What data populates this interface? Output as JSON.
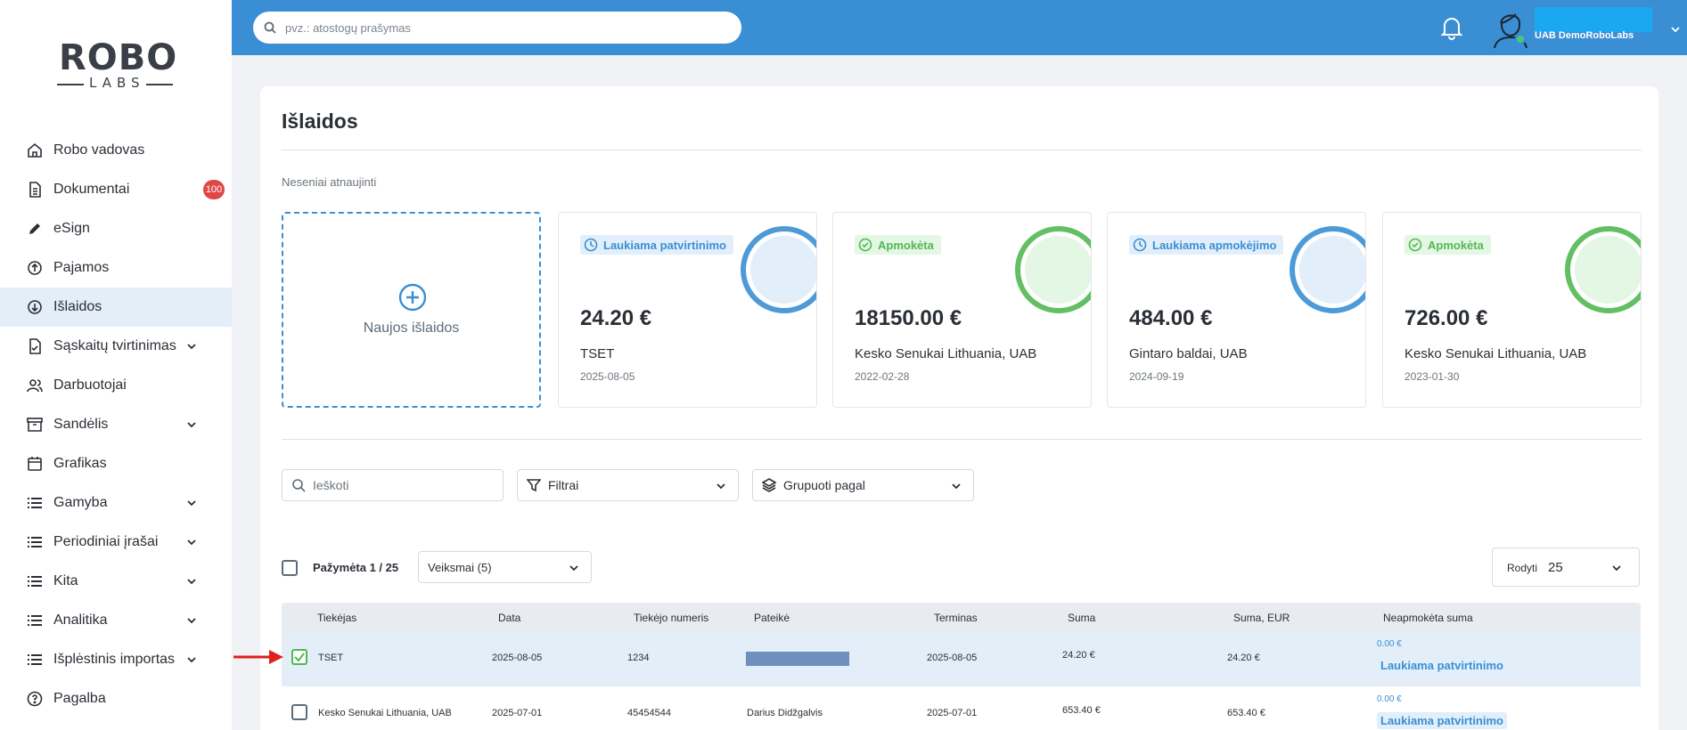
{
  "brand": {
    "logo_top": "ROBO",
    "logo_bottom": "LABS"
  },
  "sidebar": {
    "items": [
      {
        "label": "Robo vadovas",
        "icon": "home-icon"
      },
      {
        "label": "Dokumentai",
        "icon": "document-icon",
        "badge": "100"
      },
      {
        "label": "eSign",
        "icon": "pen-icon"
      },
      {
        "label": "Pajamos",
        "icon": "income-icon"
      },
      {
        "label": "Išlaidos",
        "icon": "expense-icon",
        "active": true
      },
      {
        "label": "Sąskaitų tvirtinimas",
        "icon": "invoice-check-icon",
        "expandable": true
      },
      {
        "label": "Darbuotojai",
        "icon": "users-icon"
      },
      {
        "label": "Sandėlis",
        "icon": "archive-icon",
        "expandable": true
      },
      {
        "label": "Grafikas",
        "icon": "calendar-icon"
      },
      {
        "label": "Gamyba",
        "icon": "list-icon",
        "expandable": true
      },
      {
        "label": "Periodiniai įrašai",
        "icon": "list-icon",
        "expandable": true
      },
      {
        "label": "Kita",
        "icon": "list-icon",
        "expandable": true
      },
      {
        "label": "Analitika",
        "icon": "list-icon",
        "expandable": true
      },
      {
        "label": "Išplėstinis importas",
        "icon": "list-icon",
        "expandable": true
      },
      {
        "label": "Pagalba",
        "icon": "help-icon"
      }
    ]
  },
  "topbar": {
    "search_placeholder": "pvz.: atostogų prašymas",
    "company": "UAB DemoRoboLabs"
  },
  "main": {
    "title": "Išlaidos",
    "recent_label": "Neseniai atnaujinti",
    "new_expense_label": "Naujos išlaidos",
    "recent_cards": [
      {
        "status": "Laukiama patvirtinimo",
        "status_kind": "pending",
        "amount": "24.20 €",
        "vendor": "TSET",
        "date": "2025-08-05"
      },
      {
        "status": "Apmokėta",
        "status_kind": "paid",
        "amount": "18150.00 €",
        "vendor": "Kesko Senukai Lithuania, UAB",
        "date": "2022-02-28"
      },
      {
        "status": "Laukiama apmokėjimo",
        "status_kind": "pending",
        "amount": "484.00 €",
        "vendor": "Gintaro baldai, UAB",
        "date": "2024-09-19"
      },
      {
        "status": "Apmokėta",
        "status_kind": "paid",
        "amount": "726.00 €",
        "vendor": "Kesko Senukai Lithuania, UAB",
        "date": "2023-01-30"
      }
    ],
    "search_placeholder": "Ieškoti",
    "filters_label": "Filtrai",
    "group_by_label": "Grupuoti pagal",
    "selected_text": "Pažymėta 1 / 25",
    "actions_label": "Veiksmai (5)",
    "rows_label": "Rodyti",
    "rows_value": "25",
    "colors": {
      "accent": "#3a8fd4",
      "paid": "#52b852",
      "danger": "#e04848"
    }
  },
  "table": {
    "headers": [
      "Tiekėjas",
      "Data",
      "Tiekėjo numeris",
      "Pateikė",
      "Terminas",
      "Suma",
      "Suma, EUR",
      "Neapmokėta suma"
    ],
    "rows": [
      {
        "selected": true,
        "vendor": "TSET",
        "date": "2025-08-05",
        "number": "1234",
        "submitted_by": "",
        "due": "2025-08-05",
        "sum": "24.20 €",
        "sum_eur": "24.20 €",
        "unpaid": "0.00 €",
        "status": "Laukiama patvirtinimo"
      },
      {
        "selected": false,
        "vendor": "Kesko Senukai Lithuania, UAB",
        "date": "2025-07-01",
        "number": "45454544",
        "submitted_by": "Darius Didžgalvis",
        "due": "2025-07-01",
        "sum": "653.40 €",
        "sum_eur": "653.40 €",
        "unpaid": "0.00 €",
        "status": "Laukiama patvirtinimo"
      }
    ]
  }
}
